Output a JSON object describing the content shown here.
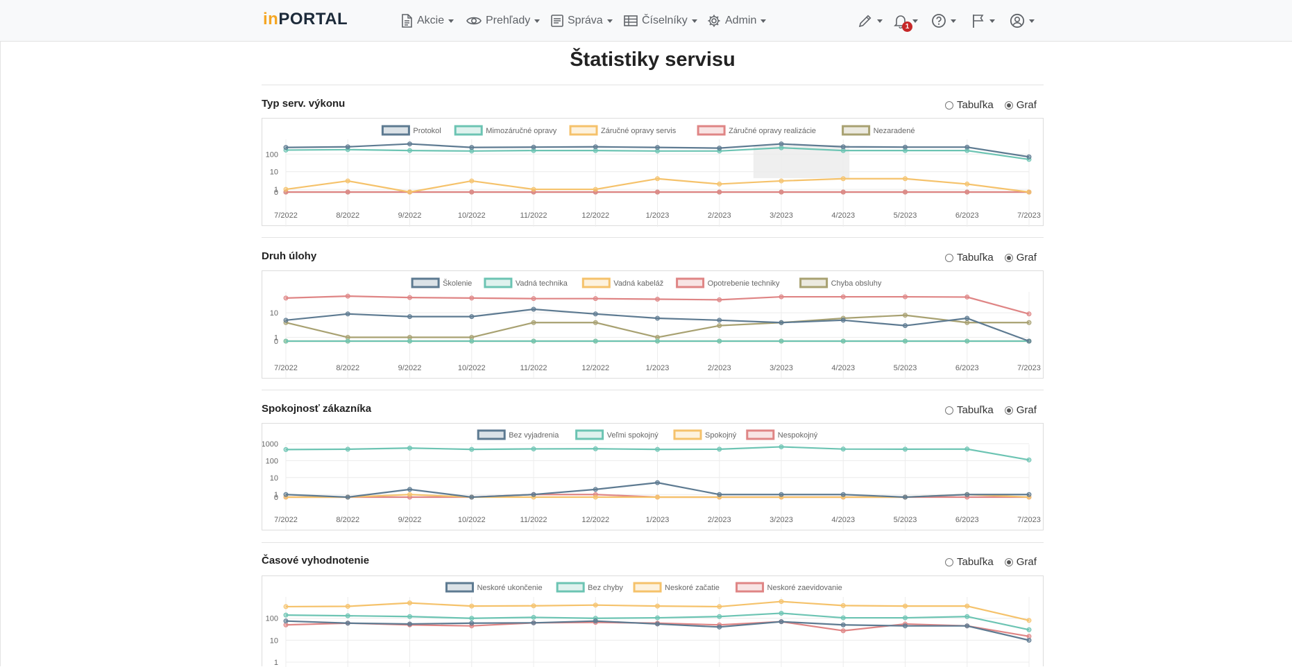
{
  "brand": {
    "prefix": "in",
    "name": "PORTAL"
  },
  "nav": [
    {
      "label": "Akcie",
      "icon": "document-icon"
    },
    {
      "label": "Prehľady",
      "icon": "eye-icon"
    },
    {
      "label": "Správa",
      "icon": "list-icon"
    },
    {
      "label": "Číselníky",
      "icon": "table-icon"
    },
    {
      "label": "Admin",
      "icon": "gear-icon"
    }
  ],
  "nav_right": {
    "icons": [
      "pencil-icon",
      "bell-icon",
      "help-icon",
      "flag-icon",
      "user-icon"
    ],
    "notification_count": "1"
  },
  "page": {
    "title": "Štatistiky servisu"
  },
  "view_options": {
    "table": "Tabuľka",
    "graph": "Graf",
    "selected": "Graf"
  },
  "colors": {
    "slate": "#5d7a91",
    "teal": "#6cc4b3",
    "orange": "#f5c26b",
    "red": "#df8585",
    "olive": "#a8a171",
    "green": "#6aaa6a"
  },
  "sections": [
    {
      "title": "Typ serv. výkonu"
    },
    {
      "title": "Druh úlohy"
    },
    {
      "title": "Spokojnosť zákazníka"
    },
    {
      "title": "Časové vyhodnotenie"
    }
  ],
  "chart_data": [
    {
      "type": "line",
      "title": "Typ serv. výkonu",
      "y_scale": "log",
      "y_ticks": [
        "100",
        "10",
        "1",
        "0"
      ],
      "x": [
        "7/2022",
        "8/2022",
        "9/2022",
        "10/2022",
        "11/2022",
        "12/2022",
        "1/2023",
        "2/2023",
        "3/2023",
        "4/2023",
        "5/2023",
        "6/2023",
        "7/2023"
      ],
      "legend_position": "top",
      "series": [
        {
          "name": "Protokol",
          "color": "#5d7a91",
          "values": [
            240,
            260,
            380,
            240,
            250,
            260,
            240,
            220,
            380,
            260,
            250,
            250,
            70
          ]
        },
        {
          "name": "Mimozáručné opravy",
          "color": "#6cc4b3",
          "values": [
            170,
            180,
            160,
            150,
            160,
            160,
            150,
            150,
            230,
            160,
            160,
            160,
            50
          ]
        },
        {
          "name": "Záručné opravy servis",
          "color": "#f5c26b",
          "values": [
            1,
            3,
            0,
            3,
            1,
            1,
            4,
            2,
            3,
            4,
            4,
            2,
            0
          ]
        },
        {
          "name": "Záručné opravy realizácie",
          "color": "#df8585",
          "values": [
            0,
            0,
            0,
            0,
            0,
            0,
            0,
            0,
            0,
            0,
            0,
            0,
            0
          ]
        },
        {
          "name": "Nezaradené",
          "color": "#a8a171",
          "values": [
            0,
            0,
            0,
            0,
            0,
            0,
            0,
            0,
            0,
            0,
            0,
            0,
            0
          ]
        }
      ]
    },
    {
      "type": "line",
      "title": "Druh úlohy",
      "y_scale": "log",
      "y_ticks": [
        "10",
        "1",
        "0"
      ],
      "x": [
        "7/2022",
        "8/2022",
        "9/2022",
        "10/2022",
        "11/2022",
        "12/2022",
        "1/2023",
        "2/2023",
        "3/2023",
        "4/2023",
        "5/2023",
        "6/2023",
        "7/2023"
      ],
      "legend_position": "top",
      "series": [
        {
          "name": "Školenie",
          "color": "#5d7a91",
          "values": [
            5,
            9,
            7,
            7,
            14,
            9,
            6,
            5,
            4,
            5,
            3,
            6,
            0
          ]
        },
        {
          "name": "Vadná technika",
          "color": "#6cc4b3",
          "values": [
            0,
            0,
            0,
            0,
            0,
            0,
            0,
            0,
            0,
            0,
            0,
            0,
            0
          ]
        },
        {
          "name": "Vadná kabeláž",
          "color": "#f5c26b",
          "values": [
            0,
            0,
            0,
            0,
            0,
            0,
            0,
            0,
            0,
            0,
            0,
            0,
            0
          ]
        },
        {
          "name": "Opotrebenie techniky",
          "color": "#df8585",
          "values": [
            40,
            48,
            42,
            40,
            38,
            38,
            36,
            34,
            45,
            45,
            45,
            44,
            9
          ]
        },
        {
          "name": "Chyba obsluhy",
          "color": "#a8a171",
          "values": [
            4,
            1,
            1,
            1,
            4,
            4,
            1,
            3,
            4,
            6,
            8,
            4,
            4
          ]
        }
      ]
    },
    {
      "type": "line",
      "title": "Spokojnosť zákazníka",
      "y_scale": "log",
      "y_ticks": [
        "1000",
        "100",
        "10",
        "1",
        "0"
      ],
      "x": [
        "7/2022",
        "8/2022",
        "9/2022",
        "10/2022",
        "11/2022",
        "12/2022",
        "1/2023",
        "2/2023",
        "3/2023",
        "4/2023",
        "5/2023",
        "6/2023",
        "7/2023"
      ],
      "legend_position": "top",
      "series": [
        {
          "name": "Bez vyjadrenia",
          "color": "#5d7a91",
          "values": [
            1,
            0,
            2,
            0,
            1,
            2,
            5,
            1,
            1,
            1,
            0,
            1,
            1
          ]
        },
        {
          "name": "Veľmi spokojný",
          "color": "#6cc4b3",
          "values": [
            450,
            470,
            550,
            460,
            490,
            500,
            460,
            470,
            650,
            480,
            470,
            480,
            110
          ]
        },
        {
          "name": "Spokojný",
          "color": "#f5c26b",
          "values": [
            0,
            0,
            1,
            0,
            0,
            0,
            0,
            0,
            0,
            0,
            0,
            1,
            0
          ]
        },
        {
          "name": "Nespokojný",
          "color": "#df8585",
          "values": [
            0,
            0,
            0,
            0,
            1,
            1,
            0,
            0,
            0,
            0,
            0,
            0,
            0
          ]
        }
      ]
    },
    {
      "type": "line",
      "title": "Časové vyhodnotenie",
      "y_scale": "log",
      "y_ticks": [
        "100",
        "10",
        "1"
      ],
      "x": [
        "7/2022",
        "8/2022",
        "9/2022",
        "10/2022",
        "11/2022",
        "12/2022",
        "1/2023",
        "2/2023",
        "3/2023",
        "4/2023",
        "5/2023",
        "6/2023",
        "7/2023"
      ],
      "legend_position": "top",
      "series": [
        {
          "name": "Neskoré ukončenie",
          "color": "#5d7a91",
          "values": [
            75,
            60,
            55,
            60,
            62,
            75,
            55,
            40,
            70,
            50,
            45,
            45,
            10
          ]
        },
        {
          "name": "Bez chyby",
          "color": "#6cc4b3",
          "values": [
            140,
            130,
            120,
            100,
            110,
            100,
            105,
            120,
            170,
            105,
            105,
            120,
            30
          ]
        },
        {
          "name": "Neskoré začatie",
          "color": "#f5c26b",
          "values": [
            340,
            350,
            500,
            360,
            370,
            400,
            360,
            340,
            580,
            380,
            360,
            360,
            80
          ]
        },
        {
          "name": "Neskoré zaevidovanie",
          "color": "#df8585",
          "values": [
            50,
            60,
            50,
            45,
            62,
            65,
            60,
            50,
            70,
            27,
            55,
            45,
            15
          ]
        }
      ]
    }
  ]
}
